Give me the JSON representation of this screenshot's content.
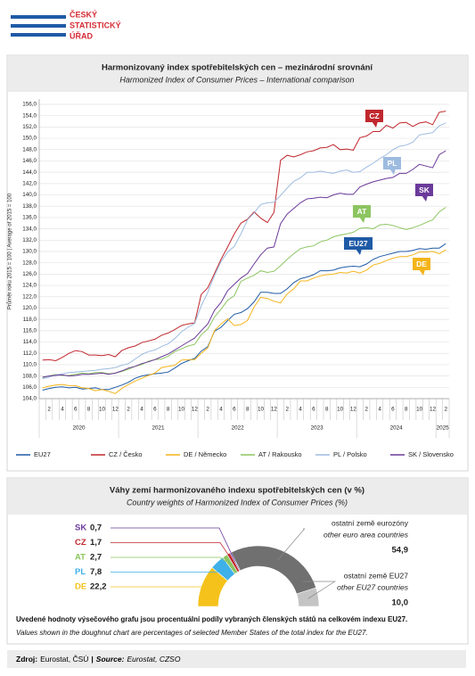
{
  "header": {
    "logo_lines": [
      "ČESKÝ",
      "STATISTICKÝ",
      "ÚŘAD"
    ]
  },
  "chart_data": [
    {
      "type": "line",
      "title": "Harmonizovaný index spotřebitelských cen – mezinárodní srovnání",
      "subtitle": "Harmonized Index of Consumer Prices – International comparison",
      "ylabel": "Průměr roku 2015 = 100 | Average of 2015 = 100",
      "categories": [
        null,
        "2",
        null,
        "4",
        null,
        "6",
        null,
        "8",
        null,
        "10",
        null,
        "12",
        null,
        "2",
        null,
        "4",
        null,
        "6",
        null,
        "8",
        null,
        "10",
        null,
        "12",
        null,
        "2",
        null,
        "4",
        null,
        "6",
        null,
        "8",
        null,
        "10",
        null,
        "12",
        null,
        "2",
        null,
        "4",
        null,
        "6",
        null,
        "8",
        null,
        "10",
        null,
        "12",
        null,
        "2",
        null,
        "4",
        null,
        "6",
        null,
        "8",
        null,
        "10",
        null,
        "12",
        null,
        "2"
      ],
      "years": [
        "2020",
        "2021",
        "2022",
        "2023",
        "2024",
        "2025"
      ],
      "ylim": [
        104,
        156
      ],
      "yticks": [
        {
          "value": 104,
          "label": "104,0"
        },
        {
          "value": 106,
          "label": "106,0"
        },
        {
          "value": 108,
          "label": "108,0"
        },
        {
          "value": 110,
          "label": "110,0"
        },
        {
          "value": 112,
          "label": "112,0"
        },
        {
          "value": 114,
          "label": "114,0"
        },
        {
          "value": 116,
          "label": "116,0"
        },
        {
          "value": 118,
          "label": "118,0"
        },
        {
          "value": 120,
          "label": "120,0"
        },
        {
          "value": 122,
          "label": "122,0"
        },
        {
          "value": 124,
          "label": "124,0"
        },
        {
          "value": 126,
          "label": "126,0"
        },
        {
          "value": 128,
          "label": "128,0"
        },
        {
          "value": 130,
          "label": "130,0"
        },
        {
          "value": 132,
          "label": "132,0"
        },
        {
          "value": 134,
          "label": "134,0"
        },
        {
          "value": 136,
          "label": "136,0"
        },
        {
          "value": 138,
          "label": "138,0"
        },
        {
          "value": 140,
          "label": "140,0"
        },
        {
          "value": 142,
          "label": "142,0"
        },
        {
          "value": 144,
          "label": "144,0"
        },
        {
          "value": 146,
          "label": "146,0"
        },
        {
          "value": 148,
          "label": "148,0"
        },
        {
          "value": 150,
          "label": "150,0"
        },
        {
          "value": 152,
          "label": "152,0"
        },
        {
          "value": 154,
          "label": "154,0"
        },
        {
          "value": 156,
          "label": "156,0"
        }
      ],
      "grid": true,
      "series": [
        {
          "name": "EU27",
          "short": "EU27",
          "color": "#1f5aa6",
          "values": [
            105.5,
            105.8,
            106.0,
            106.1,
            105.9,
            106.0,
            105.7,
            105.8,
            105.9,
            105.6,
            105.6,
            106.0,
            106.4,
            106.9,
            107.6,
            108.0,
            108.2,
            108.4,
            108.5,
            108.7,
            109.4,
            110.2,
            110.7,
            111.1,
            112.4,
            113.2,
            115.9,
            116.6,
            117.8,
            118.9,
            119.2,
            119.9,
            121.1,
            122.8,
            122.8,
            122.6,
            122.6,
            123.4,
            124.5,
            125.2,
            125.5,
            125.9,
            126.6,
            126.6,
            126.7,
            127.1,
            127.3,
            127.4,
            127.3,
            127.8,
            128.6,
            129.1,
            129.4,
            129.7,
            130.0,
            130.0,
            130.2,
            130.5,
            130.4,
            130.6,
            130.6,
            131.4
          ]
        },
        {
          "name": "CZ / Česko",
          "short": "CZ",
          "color": "#c0282e",
          "values": [
            110.8,
            110.9,
            110.7,
            111.3,
            112.0,
            112.5,
            112.3,
            111.7,
            111.7,
            111.6,
            111.8,
            111.4,
            112.5,
            113.0,
            113.3,
            113.9,
            114.2,
            114.5,
            115.2,
            115.6,
            116.2,
            116.9,
            117.2,
            117.4,
            122.4,
            123.6,
            126.1,
            128.6,
            130.8,
            133.1,
            135.0,
            135.7,
            137.0,
            135.9,
            135.1,
            136.9,
            146.1,
            147.0,
            146.7,
            147.1,
            147.6,
            147.8,
            148.3,
            148.4,
            148.9,
            148.0,
            148.1,
            147.9,
            150.1,
            150.4,
            151.2,
            151.2,
            152.3,
            151.8,
            152.7,
            152.8,
            152.1,
            152.7,
            152.9,
            152.4,
            154.6,
            154.8
          ]
        },
        {
          "name": "DE / Německo",
          "short": "DE",
          "color": "#f4b41a",
          "values": [
            105.9,
            106.2,
            106.4,
            106.5,
            106.3,
            106.3,
            105.9,
            105.8,
            105.4,
            105.6,
            105.3,
            104.9,
            105.8,
            106.5,
            107.1,
            107.6,
            108.1,
            108.5,
            109.5,
            109.7,
            109.9,
            110.8,
            110.9,
            110.9,
            112.0,
            113.0,
            116.0,
            117.2,
            118.1,
            116.9,
            117.1,
            117.8,
            120.2,
            121.9,
            121.7,
            121.2,
            120.9,
            122.5,
            123.4,
            124.8,
            124.8,
            125.3,
            125.7,
            125.9,
            126.0,
            126.3,
            126.2,
            126.5,
            126.2,
            126.7,
            127.6,
            127.9,
            128.4,
            128.8,
            129.1,
            129.1,
            129.4,
            129.9,
            129.9,
            130.0,
            129.6,
            130.3
          ]
        },
        {
          "name": "AT / Rakousko",
          "short": "AT",
          "color": "#8cc560",
          "values": [
            107.7,
            108.0,
            108.3,
            108.1,
            108.1,
            108.3,
            108.5,
            108.4,
            108.6,
            108.6,
            108.4,
            108.5,
            108.8,
            109.2,
            109.7,
            110.0,
            110.6,
            110.9,
            111.0,
            111.5,
            112.3,
            112.8,
            113.3,
            113.6,
            115.3,
            116.3,
            118.4,
            119.8,
            121.4,
            122.2,
            124.7,
            125.3,
            125.8,
            126.6,
            126.3,
            126.5,
            127.5,
            128.6,
            129.6,
            130.5,
            130.8,
            131.0,
            131.7,
            132.0,
            132.6,
            132.9,
            133.1,
            133.4,
            134.1,
            134.2,
            134.0,
            134.7,
            134.8,
            134.6,
            134.2,
            133.9,
            134.2,
            134.6,
            135.1,
            135.6,
            137.0,
            137.8
          ]
        },
        {
          "name": "PL / Polsko",
          "short": "PL",
          "color": "#9dbbe0",
          "values": [
            107.5,
            107.8,
            108.2,
            108.4,
            108.6,
            108.7,
            108.8,
            108.9,
            109.0,
            109.2,
            109.3,
            109.5,
            109.9,
            110.2,
            111.0,
            111.8,
            112.3,
            112.6,
            113.2,
            113.7,
            114.6,
            115.8,
            116.6,
            117.3,
            120.4,
            122.8,
            125.7,
            128.2,
            129.9,
            130.9,
            133.1,
            135.6,
            136.8,
            138.3,
            138.6,
            138.7,
            139.9,
            141.2,
            142.4,
            143.0,
            144.0,
            144.0,
            144.2,
            144.0,
            143.8,
            144.2,
            144.4,
            144.0,
            144.1,
            144.9,
            145.6,
            146.4,
            147.1,
            148.0,
            148.6,
            148.8,
            149.3,
            150.6,
            150.8,
            151.0,
            152.2,
            152.7
          ]
        },
        {
          "name": "SK / Slovensko",
          "short": "SK",
          "color": "#6b3a9a",
          "values": [
            107.8,
            108.0,
            108.1,
            108.2,
            108.0,
            108.1,
            108.3,
            108.3,
            108.4,
            108.5,
            108.3,
            108.5,
            108.9,
            109.4,
            109.7,
            110.2,
            110.5,
            110.9,
            111.4,
            111.9,
            112.6,
            113.3,
            114.0,
            114.7,
            116.0,
            117.2,
            119.6,
            121.0,
            123.1,
            124.2,
            125.3,
            126.1,
            127.8,
            129.4,
            130.6,
            130.8,
            134.9,
            136.6,
            137.6,
            138.6,
            139.3,
            139.4,
            139.6,
            139.5,
            140.0,
            140.3,
            140.1,
            140.1,
            141.4,
            141.9,
            142.3,
            142.6,
            142.9,
            143.1,
            143.8,
            143.8,
            144.5,
            145.4,
            145.1,
            144.8,
            147.1,
            147.8
          ]
        }
      ]
    },
    {
      "type": "doughnut",
      "title": "Váhy zemí harmonizovaného indexu spotřebitelských cen (v %)",
      "subtitle": "Country weights of Harmonized Index of Consumer Prices (%)",
      "categories": [
        "SK",
        "CZ",
        "AT",
        "PL",
        "DE",
        "ostatní země eurozóny",
        "ostatní země EU27"
      ],
      "categories_en": [
        null,
        null,
        null,
        null,
        null,
        "other euro area countries",
        "other EU27 countries"
      ],
      "values": [
        0.7,
        1.7,
        2.7,
        7.8,
        22.2,
        54.9,
        10.0
      ],
      "value_labels": [
        "0,7",
        "1,7",
        "2,7",
        "7,8",
        "22,2",
        "54,9",
        "10,0"
      ],
      "colors": [
        "#6b3a9a",
        "#c0282e",
        "#8cc560",
        "#3fb0e8",
        "#f4c21a",
        "#707070",
        "#c4c4c4"
      ],
      "note": "Uvedené hodnoty výsečového grafu jsou procentuální podíly vybraných členských států na celkovém indexu EU27.",
      "note_en": "Values shown in the doughnut chart are percentages of selected Member States of the total index for the EU27."
    }
  ],
  "footer": [
    {
      "text": "Zdroj:",
      "bold": true,
      "italic": false
    },
    {
      "text": "Eurostat, ČSÚ",
      "bold": false,
      "italic": false
    },
    {
      "text": "|",
      "bold": true,
      "italic": false
    },
    {
      "text": "Source:",
      "bold": true,
      "italic": true
    },
    {
      "text": "Eurostat, CZSO",
      "bold": false,
      "italic": true
    }
  ]
}
